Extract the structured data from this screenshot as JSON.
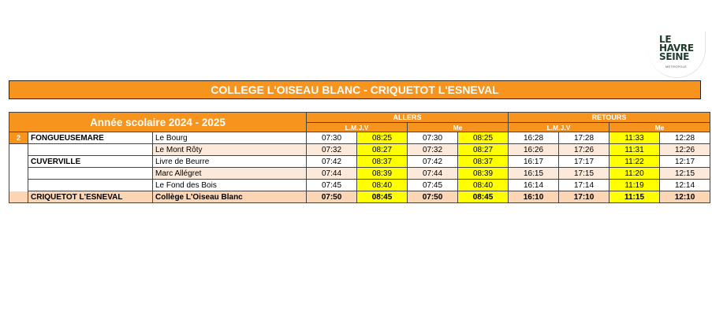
{
  "logo": {
    "line1": "LE",
    "line2": "HAVRE",
    "line3": "SEINE",
    "tagline": "MÉTROPOLE"
  },
  "title": "COLLEGE L'OISEAU BLANC - CRIQUETOT L'ESNEVAL",
  "year": "Année scolaire 2024 - 2025",
  "allers": "ALLERS",
  "retours": "RETOURS",
  "days_lmjv": "L.M.J.V",
  "days_me": "Me",
  "line_number": "2",
  "rows": [
    {
      "city": "FONGUEUSEMARE",
      "stop": "Le Bourg",
      "times": [
        "07:30",
        "08:25",
        "07:30",
        "08:25",
        "16:28",
        "17:28",
        "11:33",
        "12:28"
      ]
    },
    {
      "city": "",
      "stop": "Le Mont Rôty",
      "times": [
        "07:32",
        "08:27",
        "07:32",
        "08:27",
        "16:26",
        "17:26",
        "11:31",
        "12:26"
      ]
    },
    {
      "city": "CUVERVILLE",
      "stop": "Livre de Beurre",
      "times": [
        "07:42",
        "08:37",
        "07:42",
        "08:37",
        "16:17",
        "17:17",
        "11:22",
        "12:17"
      ]
    },
    {
      "city": "",
      "stop": "Marc Allégret",
      "times": [
        "07:44",
        "08:39",
        "07:44",
        "08:39",
        "16:15",
        "17:15",
        "11:20",
        "12:15"
      ]
    },
    {
      "city": "",
      "stop": "Le Fond des Bois",
      "times": [
        "07:45",
        "08:40",
        "07:45",
        "08:40",
        "16:14",
        "17:14",
        "11:19",
        "12:14"
      ]
    },
    {
      "city": "CRIQUETOT L'ESNEVAL",
      "stop": "Collège L'Oiseau Blanc",
      "times": [
        "07:50",
        "08:45",
        "07:50",
        "08:45",
        "16:10",
        "17:10",
        "11:15",
        "12:10"
      ]
    }
  ]
}
